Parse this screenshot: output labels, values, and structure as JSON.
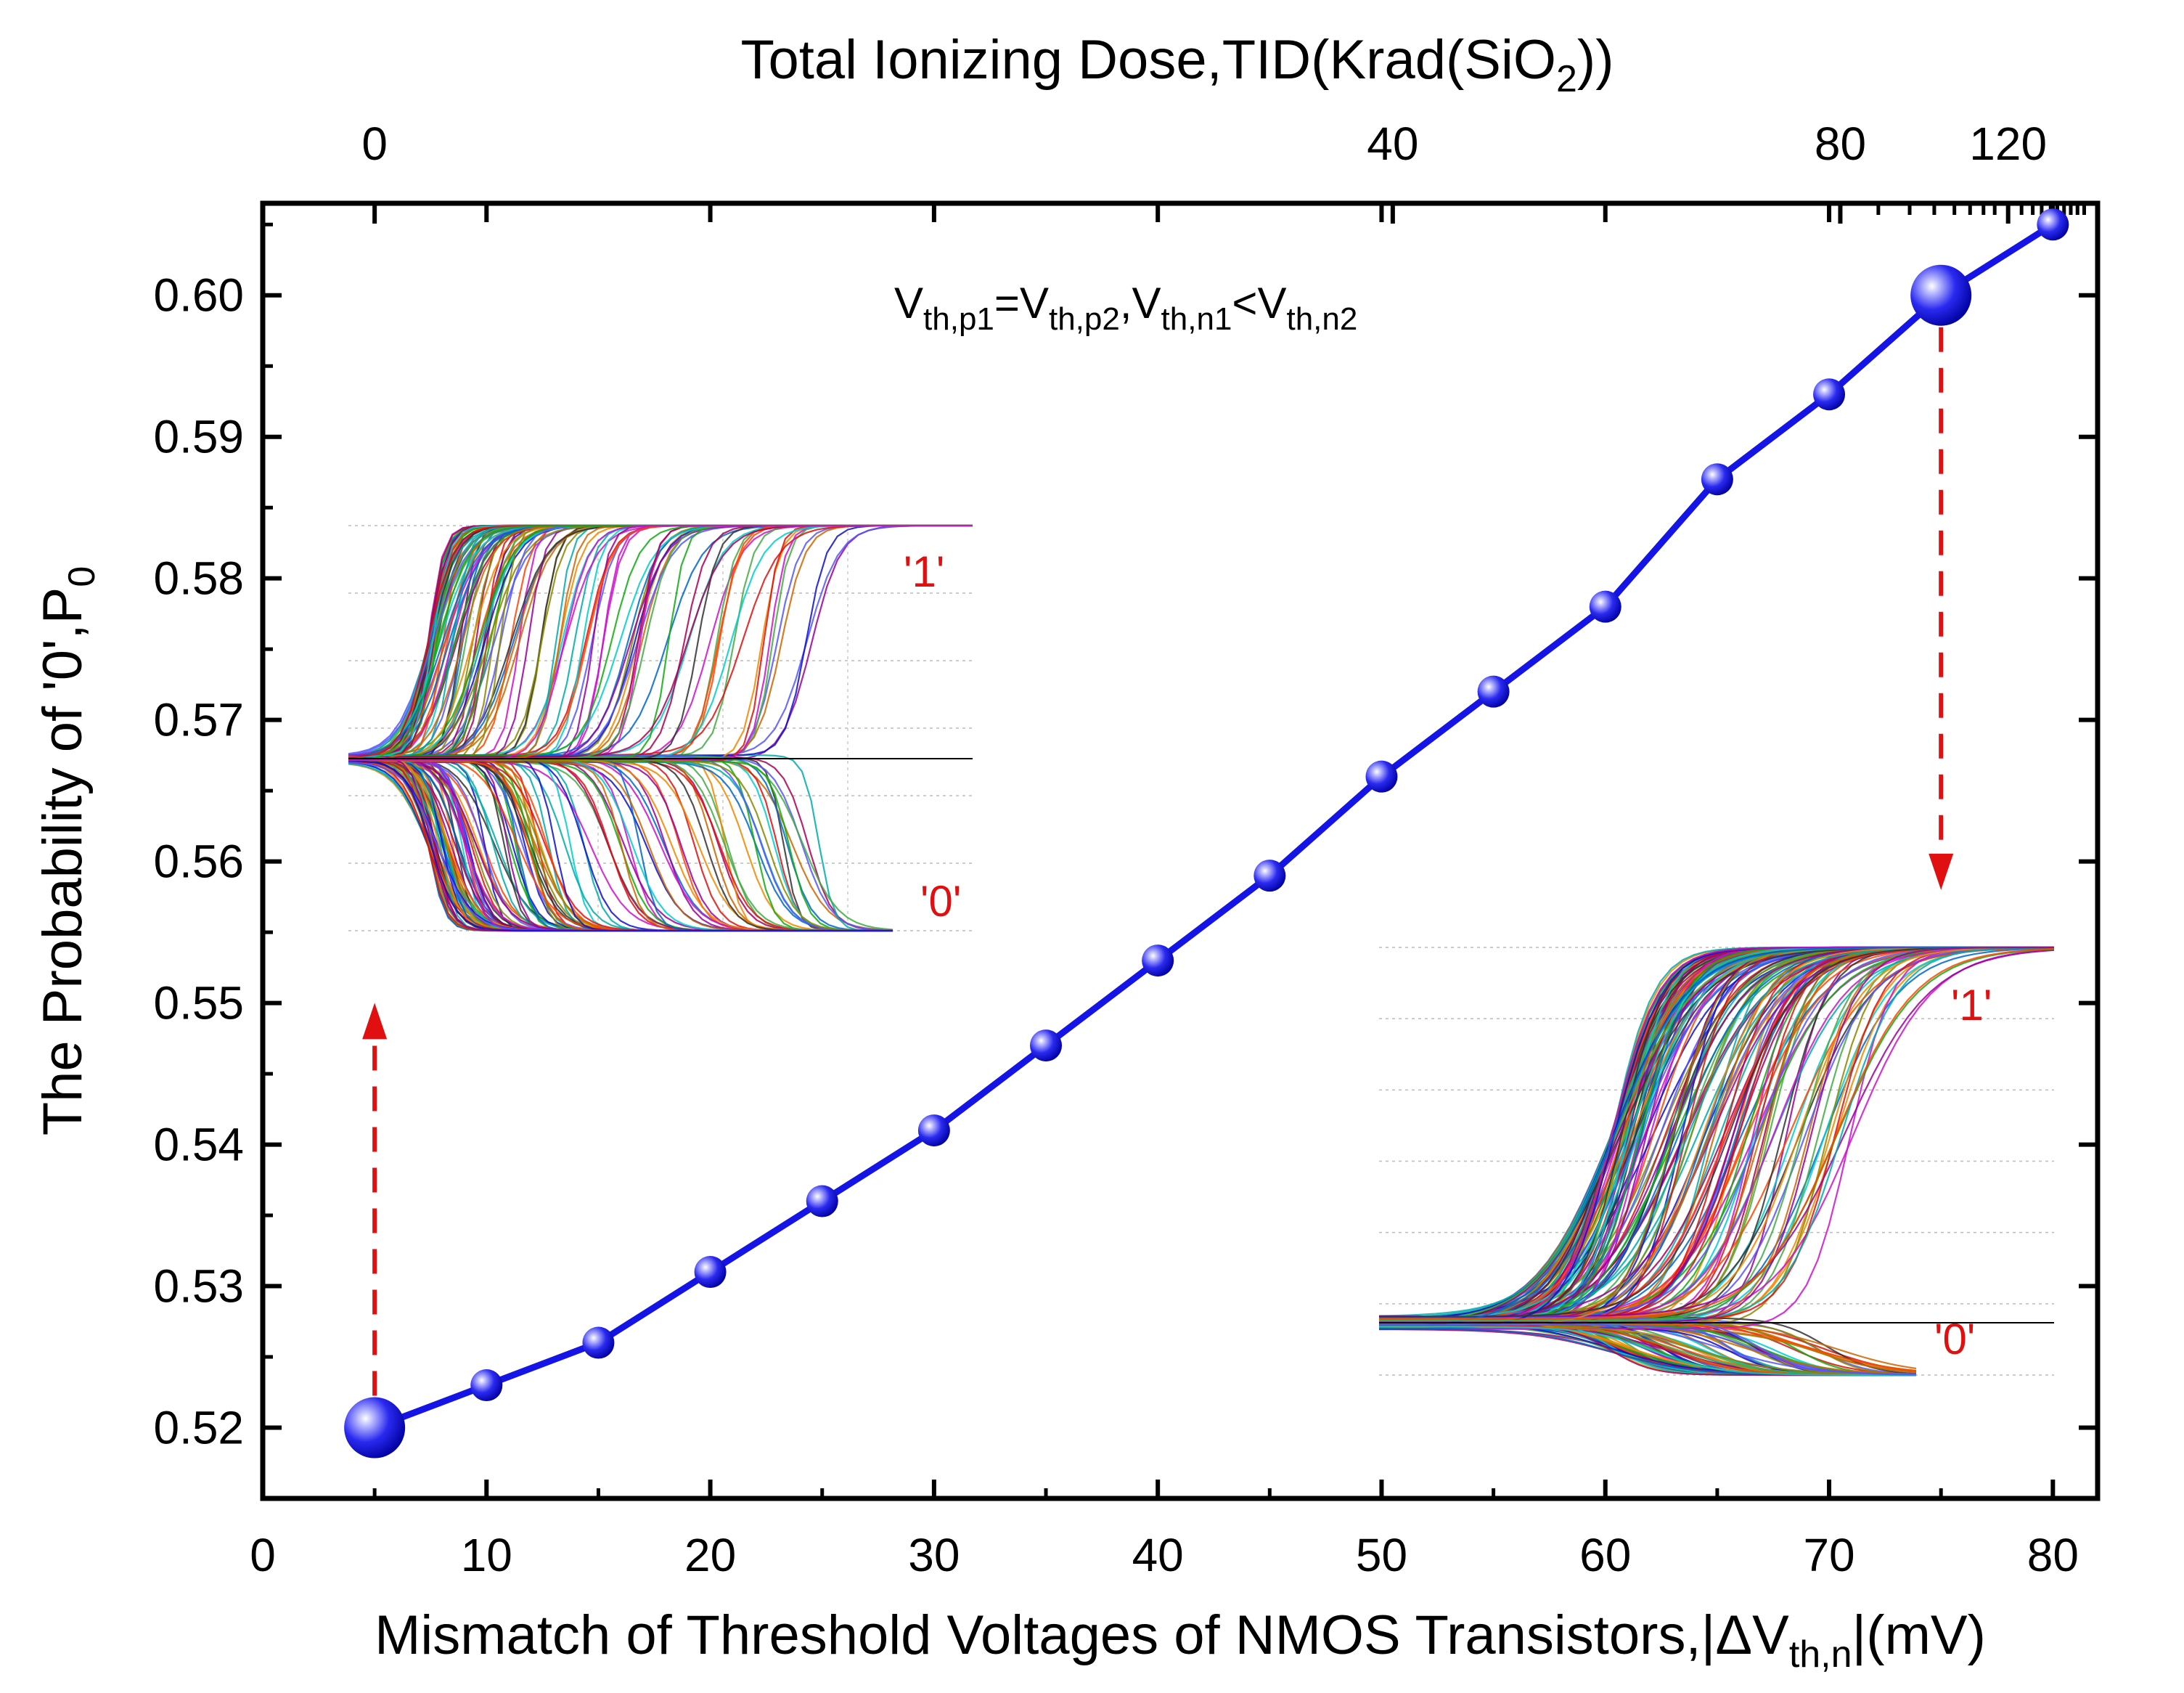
{
  "chart_data": {
    "type": "line",
    "title": "",
    "top_axis": {
      "label": "Total Ionizing Dose,TID(Krad(SiO",
      "label_sub": "2",
      "label_end": "))",
      "scale": "mixed linear/log",
      "ticks": [
        {
          "label": "0",
          "x": 5
        },
        {
          "label": "40",
          "x": 50.5
        },
        {
          "label": "80",
          "x": 70.5
        },
        {
          "label": "120",
          "x": 78
        }
      ]
    },
    "xlabel": {
      "main": "Mismatch of Threshold Voltages of NMOS Transistors,|",
      "delta": "ΔV",
      "sub": "th,n",
      "end": "|(mV)"
    },
    "ylabel": {
      "main": "The Probability of '0',P",
      "sub": "0"
    },
    "xlim": [
      0,
      82
    ],
    "ylim": [
      0.515,
      0.6065
    ],
    "xticks": [
      0,
      10,
      20,
      30,
      40,
      50,
      60,
      70,
      80
    ],
    "xtick_labels": [
      "0",
      "10",
      "20",
      "30",
      "40",
      "50",
      "60",
      "70",
      "80"
    ],
    "yticks": [
      0.52,
      0.53,
      0.54,
      0.55,
      0.56,
      0.57,
      0.58,
      0.59,
      0.6
    ],
    "ytick_labels": [
      "0.52",
      "0.53",
      "0.54",
      "0.55",
      "0.56",
      "0.57",
      "0.58",
      "0.59",
      "0.60"
    ],
    "series": [
      {
        "name": "P0",
        "color": "#1414e6",
        "x": [
          5,
          10,
          15,
          20,
          25,
          30,
          35,
          40,
          45,
          50,
          55,
          60,
          65,
          70,
          75,
          80
        ],
        "y": [
          0.52,
          0.523,
          0.526,
          0.531,
          0.536,
          0.541,
          0.547,
          0.553,
          0.559,
          0.566,
          0.572,
          0.578,
          0.587,
          0.593,
          0.6,
          0.605
        ],
        "highlighted_points": [
          0,
          14
        ]
      }
    ],
    "annotations": {
      "condition": {
        "parts": [
          "V",
          "th,p1",
          "=V",
          "th,p2",
          ",V",
          "th,n1",
          "<V",
          "th,n2"
        ]
      },
      "inset_labels": {
        "one": "'1'",
        "zero": "'0'"
      },
      "arrow_color": "#e01010"
    }
  }
}
